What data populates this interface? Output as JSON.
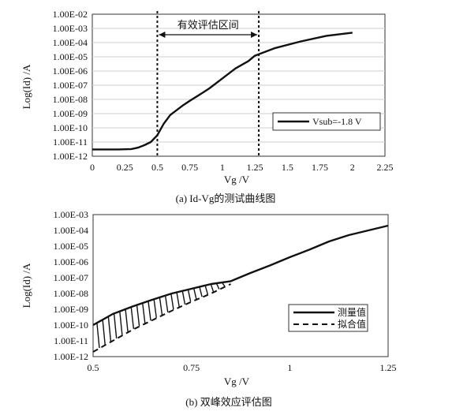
{
  "chart_data": [
    {
      "type": "line",
      "caption": "(a) Id-Vg的测试曲线图",
      "xlabel": "Vg /V",
      "ylabel": "Log(Id) /A",
      "xlim": [
        0,
        2.25
      ],
      "ylim": [
        1e-12,
        0.01
      ],
      "log_y": true,
      "grid": true,
      "x_ticks": [
        "0",
        "0.25",
        "0.5",
        "0.75",
        "1",
        "1.25",
        "1.5",
        "1.75",
        "2",
        "2.25"
      ],
      "y_ticks": [
        "1.00E-12",
        "1.00E-11",
        "1.00E-10",
        "1.00E-09",
        "1.00E-08",
        "1.00E-07",
        "1.00E-06",
        "1.00E-05",
        "1.00E-04",
        "1.00E-03",
        "1.00E-02"
      ],
      "series": [
        {
          "name": "Vsub=-1.8 V",
          "x": [
            0,
            0.1,
            0.2,
            0.3,
            0.35,
            0.4,
            0.45,
            0.5,
            0.55,
            0.6,
            0.7,
            0.75,
            0.85,
            0.9,
            1.0,
            1.1,
            1.2,
            1.25,
            1.4,
            1.6,
            1.8,
            2.0
          ],
          "y": [
            3e-12,
            3e-12,
            3e-12,
            3.2e-12,
            4e-12,
            6e-12,
            1e-11,
            3e-11,
            2e-10,
            8e-10,
            4e-09,
            8e-09,
            3e-08,
            6e-08,
            3e-07,
            1.5e-06,
            5e-06,
            1.2e-05,
            4e-05,
            0.00012,
            0.0003,
            0.0005
          ]
        }
      ],
      "legend_position": "right",
      "annotation": {
        "text": "有效评估区间",
        "x_start": 0.5,
        "x_end": 1.28
      }
    },
    {
      "type": "line",
      "caption": "(b) 双峰效应评估图",
      "xlabel": "Vg /V",
      "ylabel": "Log(Id) /A",
      "xlim": [
        0.5,
        1.25
      ],
      "ylim": [
        1e-12,
        0.001
      ],
      "log_y": true,
      "grid": false,
      "x_ticks": [
        "0.5",
        "0.75",
        "1",
        "1.25"
      ],
      "y_ticks": [
        "1.00E-12",
        "1.00E-11",
        "1.00E-10",
        "1.00E-09",
        "1.00E-08",
        "1.00E-07",
        "1.00E-06",
        "1.00E-05",
        "1.00E-04",
        "1.00E-03"
      ],
      "series": [
        {
          "name": "测量值",
          "style": "solid",
          "x": [
            0.5,
            0.55,
            0.6,
            0.65,
            0.7,
            0.75,
            0.8,
            0.85,
            0.9,
            0.95,
            1.0,
            1.05,
            1.1,
            1.15,
            1.2,
            1.25
          ],
          "y": [
            1e-10,
            5e-10,
            1.5e-09,
            4e-09,
            1e-08,
            2e-08,
            4e-08,
            6e-08,
            2e-07,
            6e-07,
            2e-06,
            6e-06,
            2e-05,
            5e-05,
            0.0001,
            0.0002
          ]
        },
        {
          "name": "拟合值",
          "style": "dashed",
          "x": [
            0.5,
            0.55,
            0.6,
            0.65,
            0.7,
            0.75,
            0.8,
            0.85
          ],
          "y": [
            2e-12,
            1e-11,
            5e-11,
            2e-10,
            8e-10,
            3e-09,
            1e-08,
            4e-08
          ]
        }
      ],
      "legend_position": "bottom-right"
    }
  ]
}
